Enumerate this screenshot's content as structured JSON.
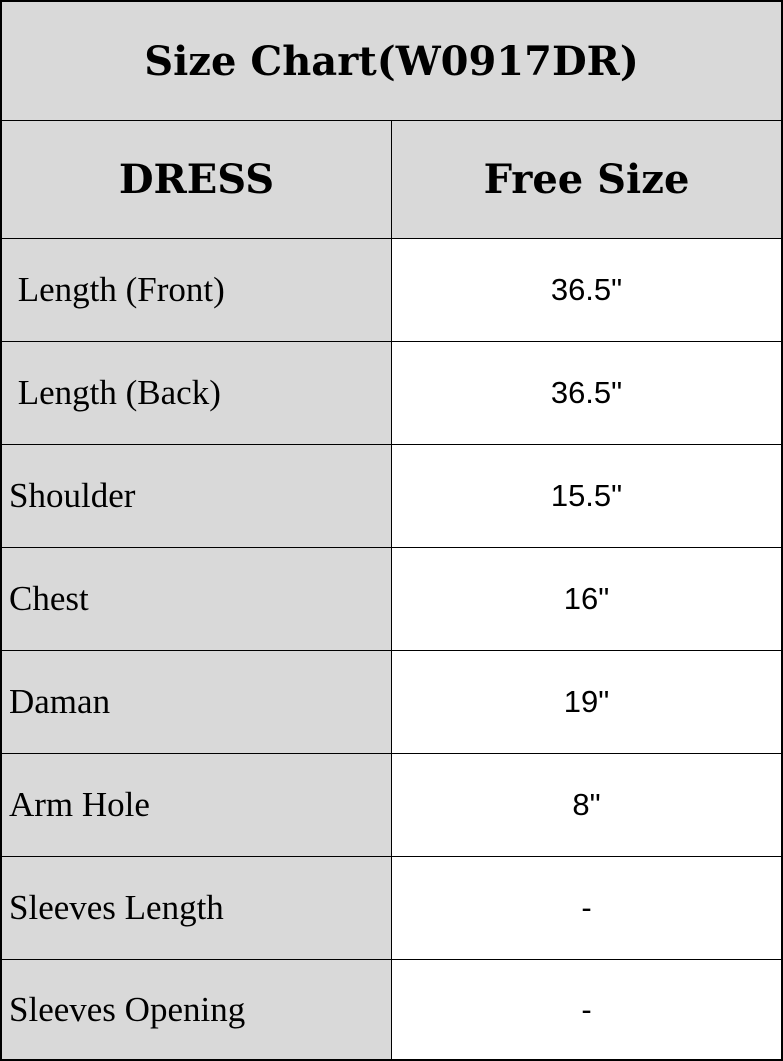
{
  "title": "Size Chart(W0917DR)",
  "header": {
    "col1": "DRESS",
    "col2": "Free Size"
  },
  "rows": [
    {
      "label": " Length (Front)",
      "value": "36.5\""
    },
    {
      "label": " Length (Back)",
      "value": "36.5\""
    },
    {
      "label": "Shoulder",
      "value": "15.5\""
    },
    {
      "label": "Chest",
      "value": "16\""
    },
    {
      "label": "Daman",
      "value": "19\""
    },
    {
      "label": "Arm Hole",
      "value": "8\""
    },
    {
      "label": "Sleeves Length",
      "value": "-"
    },
    {
      "label": "Sleeves Opening",
      "value": "-"
    }
  ],
  "colors": {
    "header_bg": "#d9d9d9",
    "border": "#000000"
  }
}
